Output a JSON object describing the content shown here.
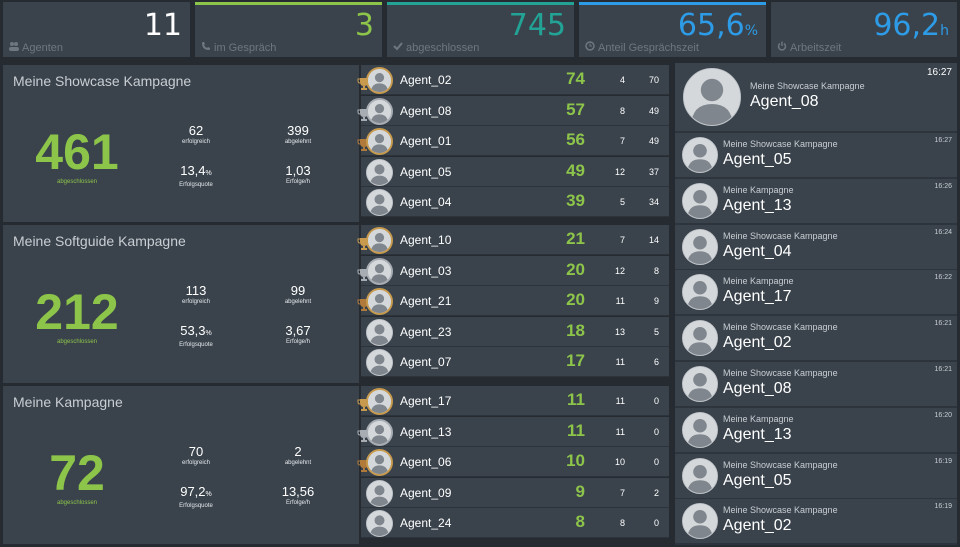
{
  "kpis": [
    {
      "value": "11",
      "unit": "",
      "label": "Agenten",
      "icon": "users-icon",
      "color": "#ffffff",
      "border": "transparent"
    },
    {
      "value": "3",
      "unit": "",
      "label": "im Gespräch",
      "icon": "phone-icon",
      "color": "#8dc44a",
      "border": "#8dc44a"
    },
    {
      "value": "745",
      "unit": "",
      "label": "abgeschlossen",
      "icon": "check-icon",
      "color": "#22a396",
      "border": "#22a396"
    },
    {
      "value": "65,6",
      "unit": "%",
      "label": "Anteil Gesprächszeit",
      "icon": "clock-icon",
      "color": "#2d9be6",
      "border": "#2d9be6"
    },
    {
      "value": "96,2",
      "unit": "h",
      "label": "Arbeitszeit",
      "icon": "power-icon",
      "color": "#2d9be6",
      "border": "transparent"
    }
  ],
  "campaigns": [
    {
      "title": "Meine Showcase Kampagne",
      "total": "461",
      "total_label": "abgeschlossen",
      "success": "62",
      "success_label": "erfolgreich",
      "declined": "399",
      "declined_label": "abgelehnt",
      "rate": "13,4",
      "rate_unit": "%",
      "rate_label": "Erfolgsquote",
      "per_hour": "1,03",
      "per_hour_label": "Erfolge/h",
      "agents": [
        {
          "name": "Agent_02",
          "score": "74",
          "c1": "4",
          "c2": "70",
          "trophy": "gold"
        },
        {
          "name": "Agent_08",
          "score": "57",
          "c1": "8",
          "c2": "49",
          "trophy": "silver"
        },
        {
          "name": "Agent_01",
          "score": "56",
          "c1": "7",
          "c2": "49",
          "trophy": "bronze"
        },
        {
          "name": "Agent_05",
          "score": "49",
          "c1": "12",
          "c2": "37",
          "trophy": ""
        },
        {
          "name": "Agent_04",
          "score": "39",
          "c1": "5",
          "c2": "34",
          "trophy": ""
        }
      ]
    },
    {
      "title": "Meine Softguide Kampagne",
      "total": "212",
      "total_label": "abgeschlossen",
      "success": "113",
      "success_label": "erfolgreich",
      "declined": "99",
      "declined_label": "abgelehnt",
      "rate": "53,3",
      "rate_unit": "%",
      "rate_label": "Erfolgsquote",
      "per_hour": "3,67",
      "per_hour_label": "Erfolge/h",
      "agents": [
        {
          "name": "Agent_10",
          "score": "21",
          "c1": "7",
          "c2": "14",
          "trophy": "gold"
        },
        {
          "name": "Agent_03",
          "score": "20",
          "c1": "12",
          "c2": "8",
          "trophy": "silver"
        },
        {
          "name": "Agent_21",
          "score": "20",
          "c1": "11",
          "c2": "9",
          "trophy": "bronze"
        },
        {
          "name": "Agent_23",
          "score": "18",
          "c1": "13",
          "c2": "5",
          "trophy": ""
        },
        {
          "name": "Agent_07",
          "score": "17",
          "c1": "11",
          "c2": "6",
          "trophy": ""
        }
      ]
    },
    {
      "title": "Meine Kampagne",
      "total": "72",
      "total_label": "abgeschlossen",
      "success": "70",
      "success_label": "erfolgreich",
      "declined": "2",
      "declined_label": "abgelehnt",
      "rate": "97,2",
      "rate_unit": "%",
      "rate_label": "Erfolgsquote",
      "per_hour": "13,56",
      "per_hour_label": "Erfolge/h",
      "agents": [
        {
          "name": "Agent_17",
          "score": "11",
          "c1": "11",
          "c2": "0",
          "trophy": "gold"
        },
        {
          "name": "Agent_13",
          "score": "11",
          "c1": "11",
          "c2": "0",
          "trophy": "silver"
        },
        {
          "name": "Agent_06",
          "score": "10",
          "c1": "10",
          "c2": "0",
          "trophy": "bronze"
        },
        {
          "name": "Agent_09",
          "score": "9",
          "c1": "7",
          "c2": "2",
          "trophy": ""
        },
        {
          "name": "Agent_24",
          "score": "8",
          "c1": "8",
          "c2": "0",
          "trophy": ""
        }
      ]
    }
  ],
  "feed": [
    {
      "campaign": "Meine Showcase Kampagne",
      "agent": "Agent_08",
      "time": "16:27"
    },
    {
      "campaign": "Meine Showcase Kampagne",
      "agent": "Agent_05",
      "time": "16:27"
    },
    {
      "campaign": "Meine Kampagne",
      "agent": "Agent_13",
      "time": "16:26"
    },
    {
      "campaign": "Meine Showcase Kampagne",
      "agent": "Agent_04",
      "time": "16:24"
    },
    {
      "campaign": "Meine Kampagne",
      "agent": "Agent_17",
      "time": "16:22"
    },
    {
      "campaign": "Meine Showcase Kampagne",
      "agent": "Agent_02",
      "time": "16:21"
    },
    {
      "campaign": "Meine Showcase Kampagne",
      "agent": "Agent_08",
      "time": "16:21"
    },
    {
      "campaign": "Meine Kampagne",
      "agent": "Agent_13",
      "time": "16:20"
    },
    {
      "campaign": "Meine Showcase Kampagne",
      "agent": "Agent_05",
      "time": "16:19"
    },
    {
      "campaign": "Meine Showcase Kampagne",
      "agent": "Agent_02",
      "time": "16:19"
    }
  ],
  "colors": {
    "accent_green": "#8dc44a",
    "panel": "#3a434c",
    "background": "#252b31",
    "gold": "#c79a4d",
    "silver": "#a7adb3",
    "bronze": "#b07a3a"
  }
}
